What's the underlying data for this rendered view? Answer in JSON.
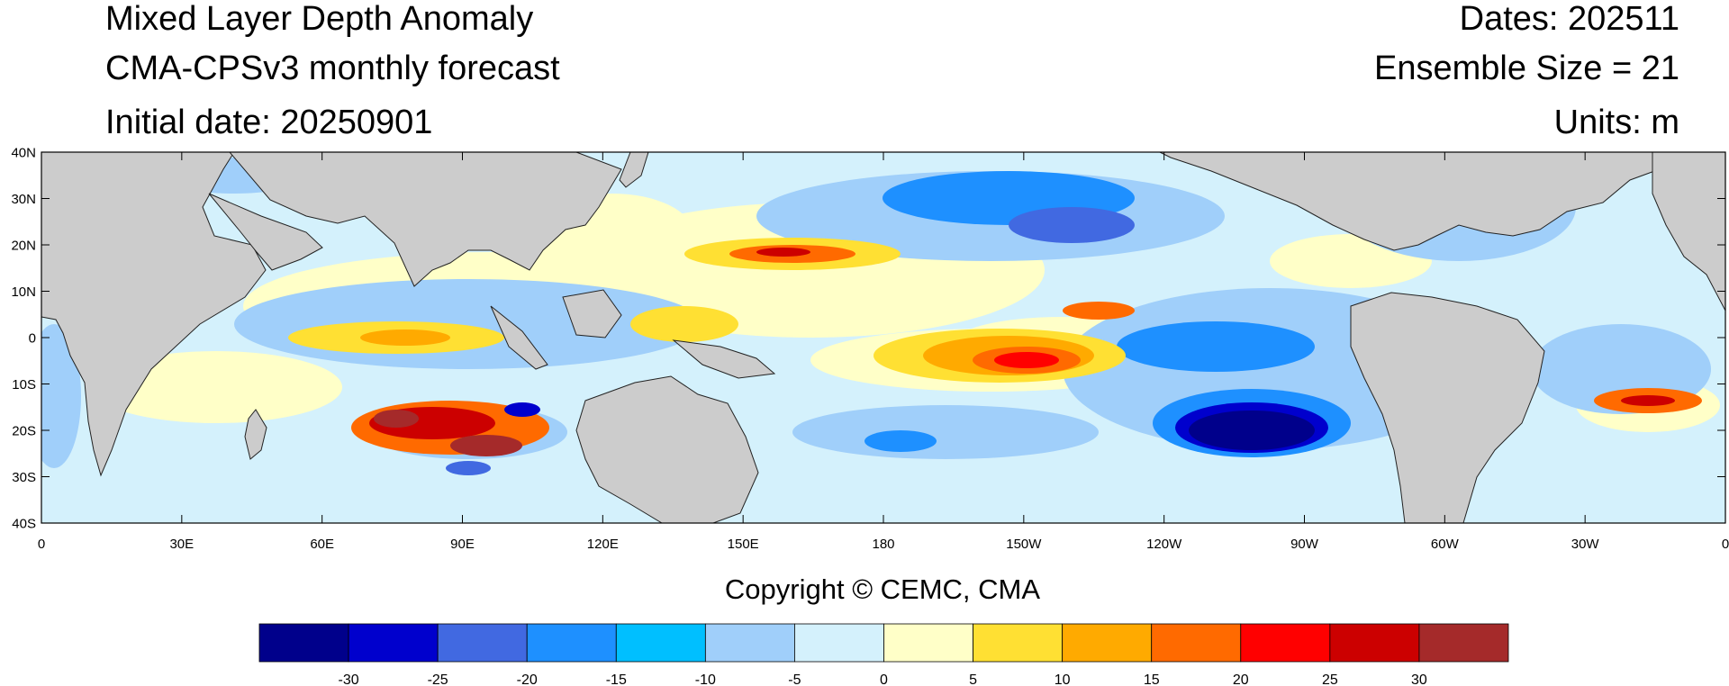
{
  "header": {
    "title": "Mixed Layer Depth Anomaly",
    "subtitle": "CMA-CPSv3 monthly forecast",
    "initial_date": "Initial date: 20250901",
    "dates": "Dates: 202511",
    "ensemble": "Ensemble Size = 21",
    "units": "Units: m"
  },
  "map": {
    "lat_labels": [
      "40N",
      "30N",
      "20N",
      "10N",
      "0",
      "10S",
      "20S",
      "30S",
      "40S"
    ],
    "lon_labels": [
      "0",
      "30E",
      "60E",
      "90E",
      "120E",
      "150E",
      "180",
      "150W",
      "120W",
      "90W",
      "60W",
      "30W",
      "0"
    ],
    "land_color": "#cccccc",
    "ocean_base_color": "#d4f1fc"
  },
  "copyright": "Copyright © CEMC, CMA",
  "colorbar": {
    "colors": [
      "#00008b",
      "#0000cd",
      "#4169e1",
      "#1e90ff",
      "#00bfff",
      "#a0cffa",
      "#d4f1fc",
      "#ffffc8",
      "#ffe033",
      "#ffaa00",
      "#ff6a00",
      "#ff0000",
      "#cc0000",
      "#a52a2a"
    ],
    "labels": [
      "-30",
      "-25",
      "-20",
      "-15",
      "-10",
      "-5",
      "0",
      "5",
      "10",
      "15",
      "20",
      "25",
      "30"
    ]
  }
}
